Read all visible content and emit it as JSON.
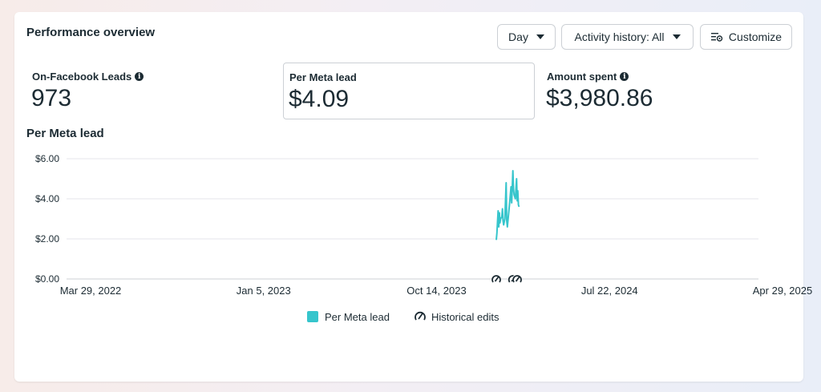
{
  "header": {
    "title": "Performance overview",
    "day_label": "Day",
    "activity_label": "Activity history: All",
    "customize_label": "Customize"
  },
  "metrics": [
    {
      "label": "On-Facebook Leads",
      "value": "973",
      "info": true
    },
    {
      "label": "Per Meta lead",
      "value": "$4.09",
      "info": false,
      "selected": true
    },
    {
      "label": "Amount spent",
      "value": "$3,980.86",
      "info": true
    }
  ],
  "chart_title": "Per Meta lead",
  "legend": {
    "series_label": "Per Meta lead",
    "edits_label": "Historical edits"
  },
  "colors": {
    "accent": "#36c5cc",
    "text": "#1c2b33",
    "grid": "#e4e6eb"
  },
  "chart_data": {
    "type": "line",
    "title": "",
    "xlabel": "",
    "ylabel": "",
    "x_ticks": [
      "Mar 29, 2022",
      "Jan 5, 2023",
      "Oct 14, 2023",
      "Jul 22, 2024",
      "Apr 29, 2025"
    ],
    "y_ticks": [
      "$0.00",
      "$2.00",
      "$4.00",
      "$6.00"
    ],
    "ylim": [
      0,
      6
    ],
    "xlim": [
      "2022-03-29",
      "2025-04-29"
    ],
    "grid": true,
    "series": [
      {
        "name": "Per Meta lead",
        "color": "#36c5cc",
        "points": [
          [
            "2024-02-27",
            1.95
          ],
          [
            "2024-02-28",
            2.3
          ],
          [
            "2024-02-29",
            2.9
          ],
          [
            "2024-03-01",
            3.4
          ],
          [
            "2024-03-02",
            2.6
          ],
          [
            "2024-03-03",
            3.3
          ],
          [
            "2024-03-04",
            2.8
          ],
          [
            "2024-03-05",
            3.0
          ],
          [
            "2024-03-07",
            3.1
          ],
          [
            "2024-03-08",
            3.5
          ],
          [
            "2024-03-09",
            2.9
          ],
          [
            "2024-03-10",
            2.7
          ],
          [
            "2024-03-12",
            3.0
          ],
          [
            "2024-03-14",
            4.8
          ],
          [
            "2024-03-15",
            2.9
          ],
          [
            "2024-03-16",
            2.6
          ],
          [
            "2024-03-20",
            3.9
          ],
          [
            "2024-03-22",
            4.6
          ],
          [
            "2024-03-23",
            3.8
          ],
          [
            "2024-03-25",
            5.4
          ],
          [
            "2024-03-26",
            4.5
          ],
          [
            "2024-03-27",
            4.2
          ],
          [
            "2024-03-29",
            4.0
          ],
          [
            "2024-03-31",
            5.0
          ],
          [
            "2024-04-01",
            3.9
          ],
          [
            "2024-04-02",
            4.4
          ],
          [
            "2024-04-03",
            3.7
          ],
          [
            "2024-04-04",
            3.6
          ]
        ]
      }
    ],
    "historical_edits": [
      "2024-02-27",
      "2024-03-25",
      "2024-04-01"
    ],
    "legend": [
      "Per Meta lead",
      "Historical edits"
    ],
    "legend_position": "bottom"
  }
}
